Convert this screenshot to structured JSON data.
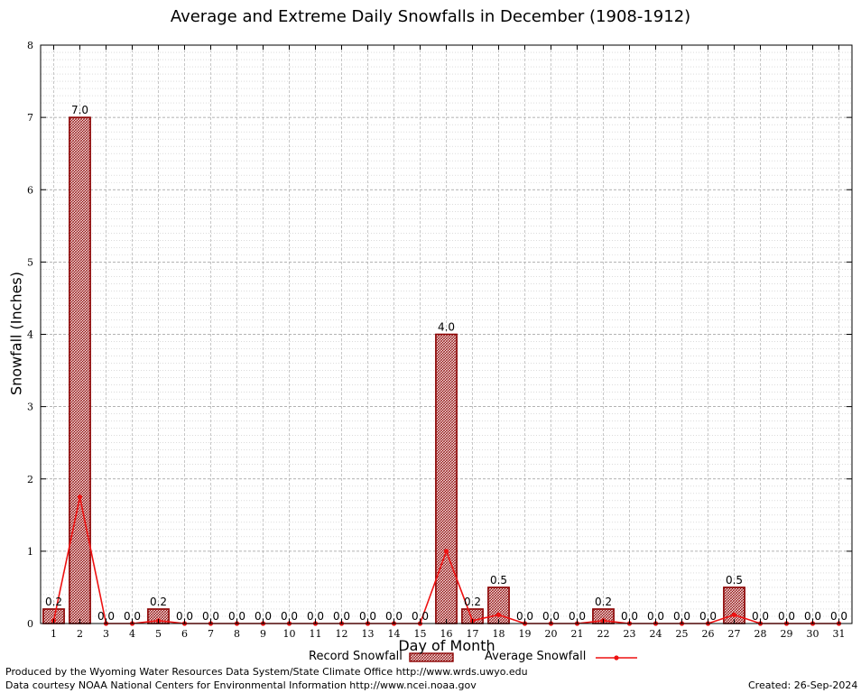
{
  "chart_data": {
    "type": "bar",
    "title": "Average and Extreme Daily Snowfalls in December (1908-1912)",
    "xlabel": "Day of Month",
    "ylabel": "Snowfall (Inches)",
    "ylim": [
      0,
      8
    ],
    "yticks": [
      0,
      1,
      2,
      3,
      4,
      5,
      6,
      7,
      8
    ],
    "categories": [
      "1",
      "2",
      "3",
      "4",
      "5",
      "6",
      "7",
      "8",
      "9",
      "10",
      "11",
      "12",
      "13",
      "14",
      "15",
      "16",
      "17",
      "18",
      "19",
      "20",
      "21",
      "22",
      "23",
      "24",
      "25",
      "26",
      "27",
      "28",
      "29",
      "30",
      "31"
    ],
    "series": [
      {
        "name": "Record Snowfall",
        "type": "bar",
        "values": [
          0.2,
          7.0,
          0.0,
          0.0,
          0.2,
          0.0,
          0.0,
          0.0,
          0.0,
          0.0,
          0.0,
          0.0,
          0.0,
          0.0,
          0.0,
          4.0,
          0.2,
          0.5,
          0.0,
          0.0,
          0.0,
          0.2,
          0.0,
          0.0,
          0.0,
          0.0,
          0.5,
          0.0,
          0.0,
          0.0,
          0.0
        ],
        "labels": [
          "0.2",
          "7.0",
          "0.0",
          "0.0",
          "0.2",
          "0.0",
          "0.0",
          "0.0",
          "0.0",
          "0.0",
          "0.0",
          "0.0",
          "0.0",
          "0.0",
          "0.0",
          "4.0",
          "0.2",
          "0.5",
          "0.0",
          "0.0",
          "0.0",
          "0.2",
          "0.0",
          "0.0",
          "0.0",
          "0.0",
          "0.5",
          "0.0",
          "0.0",
          "0.0",
          "0.0"
        ],
        "color": "#8b0000"
      },
      {
        "name": "Average Snowfall",
        "type": "line",
        "values": [
          0.04,
          1.75,
          0.0,
          0.0,
          0.04,
          0.0,
          0.0,
          0.0,
          0.0,
          0.0,
          0.0,
          0.0,
          0.0,
          0.0,
          0.0,
          1.0,
          0.04,
          0.12,
          0.0,
          0.0,
          0.0,
          0.04,
          0.0,
          0.0,
          0.0,
          0.0,
          0.12,
          0.0,
          0.0,
          0.0,
          0.0
        ],
        "color": "#ee1111"
      }
    ],
    "grid": true,
    "legend_position": "bottom-center"
  },
  "footer": {
    "produced_by": "Produced by the Wyoming Water Resources Data System/State Climate Office http://www.wrds.uwyo.edu",
    "courtesy": "Data courtesy NOAA National Centers for Environmental Information http://www.ncei.noaa.gov",
    "created": "Created:  26-Sep-2024"
  }
}
